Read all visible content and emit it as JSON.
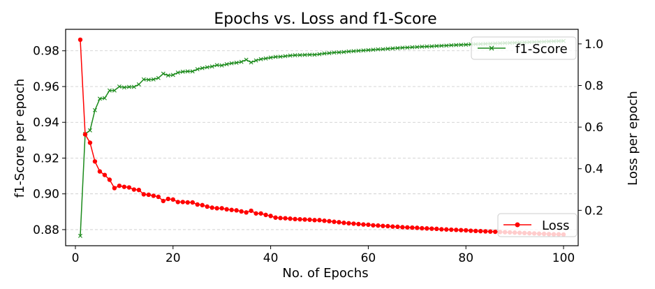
{
  "chart_data": {
    "type": "line",
    "title": "Epochs vs. Loss and f1-Score",
    "xlabel": "No. of Epochs",
    "ylabel_left": "f1-Score per epoch",
    "ylabel_right": "Loss per epoch",
    "xlim": [
      -2,
      103
    ],
    "ylim_left": [
      0.871,
      0.992
    ],
    "ylim_right": [
      0.03,
      1.07
    ],
    "xticks": [
      0,
      20,
      40,
      60,
      80,
      100
    ],
    "xtick_labels": [
      "0",
      "20",
      "40",
      "60",
      "80",
      "100"
    ],
    "yticks_left": [
      0.88,
      0.9,
      0.92,
      0.94,
      0.96,
      0.98
    ],
    "ytick_labels_left": [
      "0.88",
      "0.90",
      "0.92",
      "0.94",
      "0.96",
      "0.98"
    ],
    "yticks_right": [
      0.2,
      0.4,
      0.6,
      0.8,
      1.0
    ],
    "ytick_labels_right": [
      "0.2",
      "0.4",
      "0.6",
      "0.8",
      "1.0"
    ],
    "grid": "horizontal dashed (left axis)",
    "series": [
      {
        "name": "f1-Score",
        "axis": "left",
        "color": "#1a8a1a",
        "marker": "x",
        "legend_position": "top-right",
        "x": [
          1,
          2,
          3,
          4,
          5,
          6,
          7,
          8,
          9,
          10,
          11,
          12,
          13,
          14,
          15,
          16,
          17,
          18,
          19,
          20,
          21,
          22,
          23,
          24,
          25,
          26,
          27,
          28,
          29,
          30,
          31,
          32,
          33,
          34,
          35,
          36,
          37,
          38,
          39,
          40,
          41,
          42,
          43,
          44,
          45,
          46,
          47,
          48,
          49,
          50,
          51,
          52,
          53,
          54,
          55,
          56,
          57,
          58,
          59,
          60,
          61,
          62,
          63,
          64,
          65,
          66,
          67,
          68,
          69,
          70,
          71,
          72,
          73,
          74,
          75,
          76,
          77,
          78,
          79,
          80,
          81,
          82,
          83,
          84,
          85,
          86,
          87,
          88,
          89,
          90,
          91,
          92,
          93,
          94,
          95,
          96,
          97,
          98,
          99,
          100
        ],
        "values": [
          0.8765,
          0.9335,
          0.9355,
          0.9468,
          0.9532,
          0.9535,
          0.9578,
          0.9578,
          0.96,
          0.9595,
          0.9598,
          0.9598,
          0.9612,
          0.964,
          0.9638,
          0.964,
          0.9648,
          0.9672,
          0.9662,
          0.9665,
          0.9678,
          0.9683,
          0.9685,
          0.9685,
          0.9697,
          0.9703,
          0.9708,
          0.9712,
          0.972,
          0.9718,
          0.9725,
          0.973,
          0.9733,
          0.9738,
          0.975,
          0.9735,
          0.9746,
          0.9753,
          0.9757,
          0.9762,
          0.9766,
          0.9767,
          0.977,
          0.9773,
          0.9775,
          0.9776,
          0.9777,
          0.9778,
          0.9778,
          0.9781,
          0.9785,
          0.9787,
          0.979,
          0.9791,
          0.9793,
          0.9796,
          0.9798,
          0.98,
          0.9802,
          0.9804,
          0.9806,
          0.9808,
          0.9809,
          0.9811,
          0.9813,
          0.9815,
          0.9817,
          0.9818,
          0.982,
          0.9821,
          0.9823,
          0.9824,
          0.9825,
          0.9827,
          0.9828,
          0.9829,
          0.9831,
          0.9832,
          0.9833,
          0.9834,
          0.9836,
          0.9837,
          0.9838,
          0.9839,
          0.984,
          0.9841,
          0.9842,
          0.9843,
          0.9844,
          0.9845,
          0.9846,
          0.9847,
          0.9848,
          0.9849,
          0.985,
          0.9851,
          0.9852,
          0.9853,
          0.9854,
          0.9855
        ]
      },
      {
        "name": "Loss",
        "axis": "right",
        "color": "#ff0000",
        "marker": "o",
        "legend_position": "bottom-right",
        "x": [
          1,
          2,
          3,
          4,
          5,
          6,
          7,
          8,
          9,
          10,
          11,
          12,
          13,
          14,
          15,
          16,
          17,
          18,
          19,
          20,
          21,
          22,
          23,
          24,
          25,
          26,
          27,
          28,
          29,
          30,
          31,
          32,
          33,
          34,
          35,
          36,
          37,
          38,
          39,
          40,
          41,
          42,
          43,
          44,
          45,
          46,
          47,
          48,
          49,
          50,
          51,
          52,
          53,
          54,
          55,
          56,
          57,
          58,
          59,
          60,
          61,
          62,
          63,
          64,
          65,
          66,
          67,
          68,
          69,
          70,
          71,
          72,
          73,
          74,
          75,
          76,
          77,
          78,
          79,
          80,
          81,
          82,
          83,
          84,
          85,
          86,
          87,
          88,
          89,
          90,
          91,
          92,
          93,
          94,
          95,
          96,
          97,
          98,
          99,
          100
        ],
        "values": [
          1.02,
          0.565,
          0.525,
          0.435,
          0.387,
          0.37,
          0.347,
          0.307,
          0.318,
          0.313,
          0.31,
          0.3,
          0.298,
          0.277,
          0.275,
          0.27,
          0.265,
          0.245,
          0.255,
          0.252,
          0.24,
          0.24,
          0.238,
          0.238,
          0.228,
          0.225,
          0.218,
          0.213,
          0.21,
          0.21,
          0.205,
          0.202,
          0.2,
          0.195,
          0.19,
          0.198,
          0.185,
          0.185,
          0.178,
          0.173,
          0.165,
          0.163,
          0.162,
          0.16,
          0.158,
          0.157,
          0.156,
          0.155,
          0.153,
          0.153,
          0.15,
          0.148,
          0.145,
          0.143,
          0.14,
          0.138,
          0.136,
          0.134,
          0.132,
          0.131,
          0.128,
          0.127,
          0.125,
          0.124,
          0.122,
          0.121,
          0.119,
          0.118,
          0.117,
          0.116,
          0.114,
          0.113,
          0.112,
          0.111,
          0.109,
          0.108,
          0.107,
          0.106,
          0.105,
          0.104,
          0.102,
          0.101,
          0.1,
          0.099,
          0.098,
          0.097,
          0.096,
          0.095,
          0.094,
          0.093,
          0.092,
          0.091,
          0.09,
          0.089,
          0.088,
          0.087,
          0.086,
          0.085,
          0.085,
          0.084
        ]
      }
    ]
  }
}
